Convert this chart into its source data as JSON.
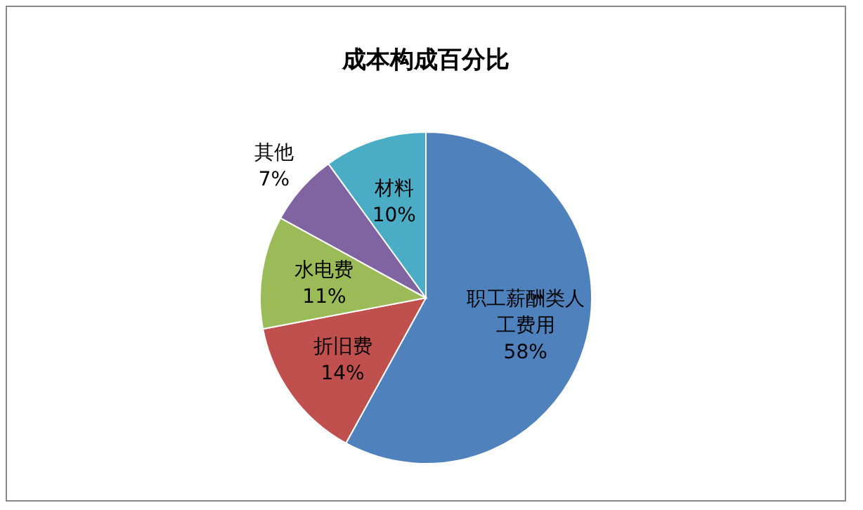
{
  "chart_data": {
    "type": "pie",
    "title": "成本构成百分比",
    "categories": [
      "职工薪酬类人工费用",
      "折旧费",
      "水电费",
      "其他",
      "材料"
    ],
    "values": [
      58,
      14,
      11,
      7,
      10
    ],
    "colors": [
      "#4f81bd",
      "#c0504d",
      "#9bbb59",
      "#8064a2",
      "#4bacc6"
    ],
    "value_labels": [
      "58%",
      "14%",
      "11%",
      "7%",
      "10%"
    ]
  }
}
